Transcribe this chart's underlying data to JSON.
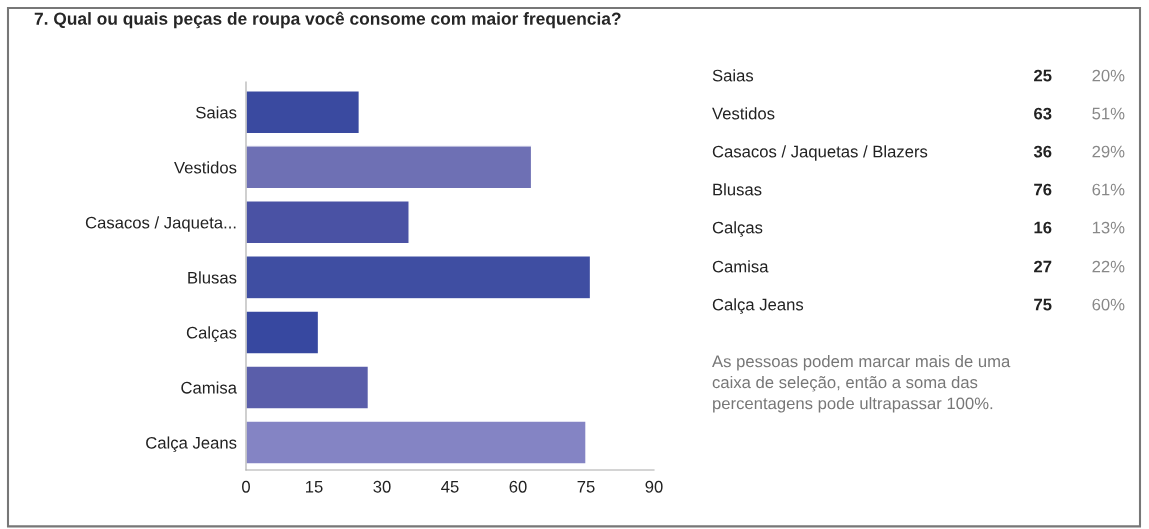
{
  "chart_data": {
    "type": "bar",
    "orientation": "horizontal",
    "title": "7. Qual ou quais peças de roupa você consome com maior frequencia?",
    "categories": [
      "Saias",
      "Vestidos",
      "Casacos / Jaqueta...",
      "Blusas",
      "Calças",
      "Camisa",
      "Calça Jeans"
    ],
    "values": [
      25,
      63,
      36,
      76,
      16,
      27,
      75
    ],
    "colors": [
      "#3a4aa0",
      "#6e70b4",
      "#4a52a4",
      "#3f4ea2",
      "#3748a0",
      "#5a5eaa",
      "#8484c4"
    ],
    "xlim": [
      0,
      90
    ],
    "xticks": [
      0,
      15,
      30,
      45,
      60,
      75,
      90
    ],
    "grid": false,
    "annotations": [
      "Saias",
      "Vestidos",
      "Casacos / Jaquetas / Blazers",
      "Blusas",
      "Calças",
      "Camisa",
      "Calça Jeans",
      "25",
      "63",
      "36",
      "76",
      "16",
      "27",
      "75",
      "20%",
      "51%",
      "29%",
      "61%",
      "13%",
      "22%",
      "60%",
      "As pessoas podem marcar mais de uma\ncaixa de seleção, então a soma das\npercentagens pode ultrapassar 100%."
    ]
  }
}
